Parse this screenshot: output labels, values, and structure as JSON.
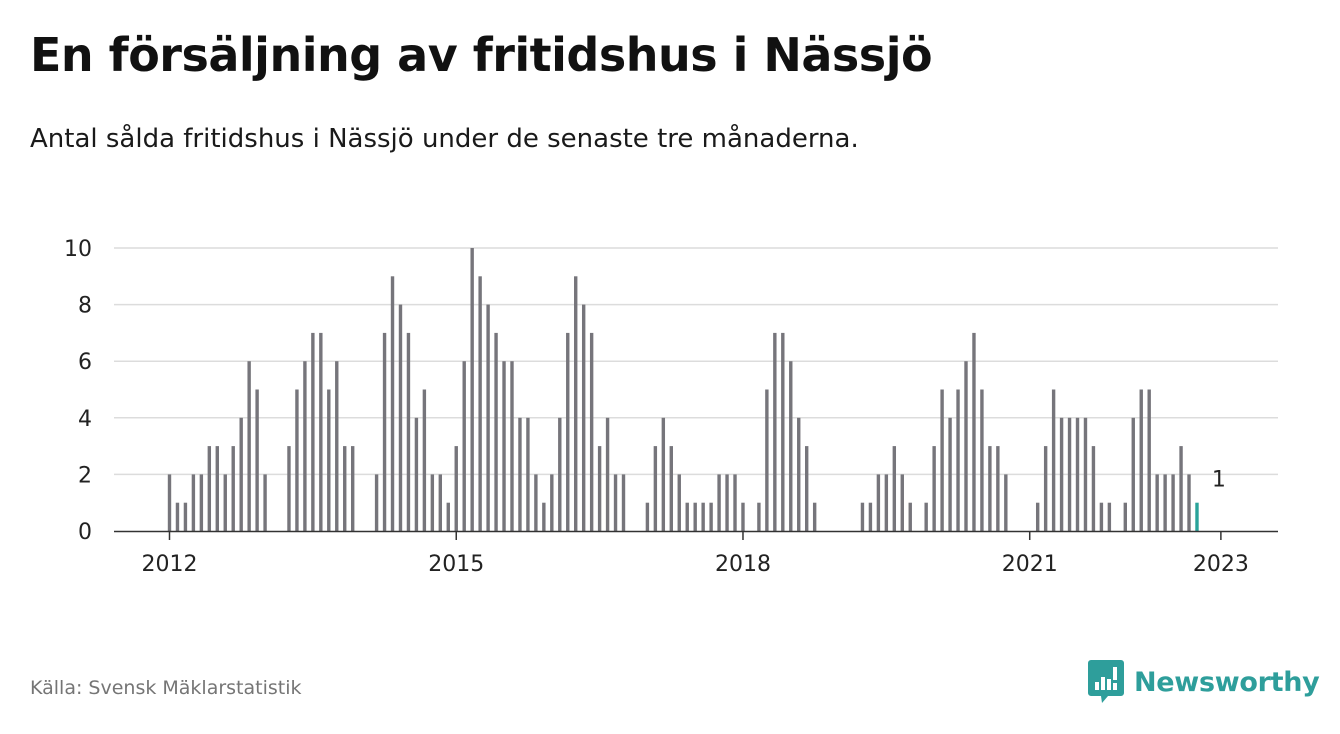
{
  "header": {
    "title": "En försäljning av fritidshus i Nässjö",
    "subtitle": "Antal sålda fritidshus i Nässjö under de senaste tre månaderna."
  },
  "footer": {
    "source": "Källa: Svensk Mäklarstatistik",
    "brand": "Newsworthy",
    "brand_icon": "newsworthy-logo-icon"
  },
  "colors": {
    "bar": "#76757b",
    "highlight": "#2aa39a",
    "grid": "#dcdcdc",
    "axis": "#333333",
    "brand": "#2e9e9b"
  },
  "chart_data": {
    "type": "bar",
    "title": "",
    "xlabel": "",
    "ylabel": "",
    "ylim": [
      0,
      10
    ],
    "yticks": [
      "0",
      "2",
      "4",
      "6",
      "8",
      "10"
    ],
    "xticks": [
      "2012",
      "2015",
      "2018",
      "2021",
      "2023"
    ],
    "grid": true,
    "start": "2012-01",
    "end": "2023-01",
    "series": [
      {
        "values": [
          2,
          1,
          1,
          2,
          2,
          3,
          3,
          2,
          3,
          4,
          6,
          5,
          2,
          null,
          null,
          3,
          5,
          6,
          7,
          7,
          5,
          6,
          3,
          3,
          null,
          null,
          2,
          7,
          9,
          8,
          7,
          4,
          5,
          2,
          2,
          1,
          3,
          6,
          10,
          9,
          8,
          7,
          6,
          6,
          4,
          4,
          2,
          1,
          2,
          4,
          7,
          9,
          8,
          7,
          3,
          4,
          2,
          2,
          null,
          null,
          1,
          3,
          4,
          3,
          2,
          1,
          1,
          1,
          1,
          2,
          2,
          2,
          1,
          null,
          1,
          5,
          7,
          7,
          6,
          4,
          3,
          1,
          null,
          null,
          null,
          null,
          null,
          1,
          1,
          2,
          2,
          3,
          2,
          1,
          null,
          1,
          3,
          5,
          4,
          5,
          6,
          7,
          5,
          3,
          3,
          2,
          null,
          null,
          null,
          1,
          3,
          5,
          4,
          4,
          4,
          4,
          3,
          1,
          1,
          null,
          1,
          4,
          5,
          5,
          2,
          2,
          2,
          3,
          2,
          1
        ]
      }
    ],
    "annotations": [
      {
        "label": "1",
        "month": "2023-01",
        "value": 1
      }
    ]
  }
}
